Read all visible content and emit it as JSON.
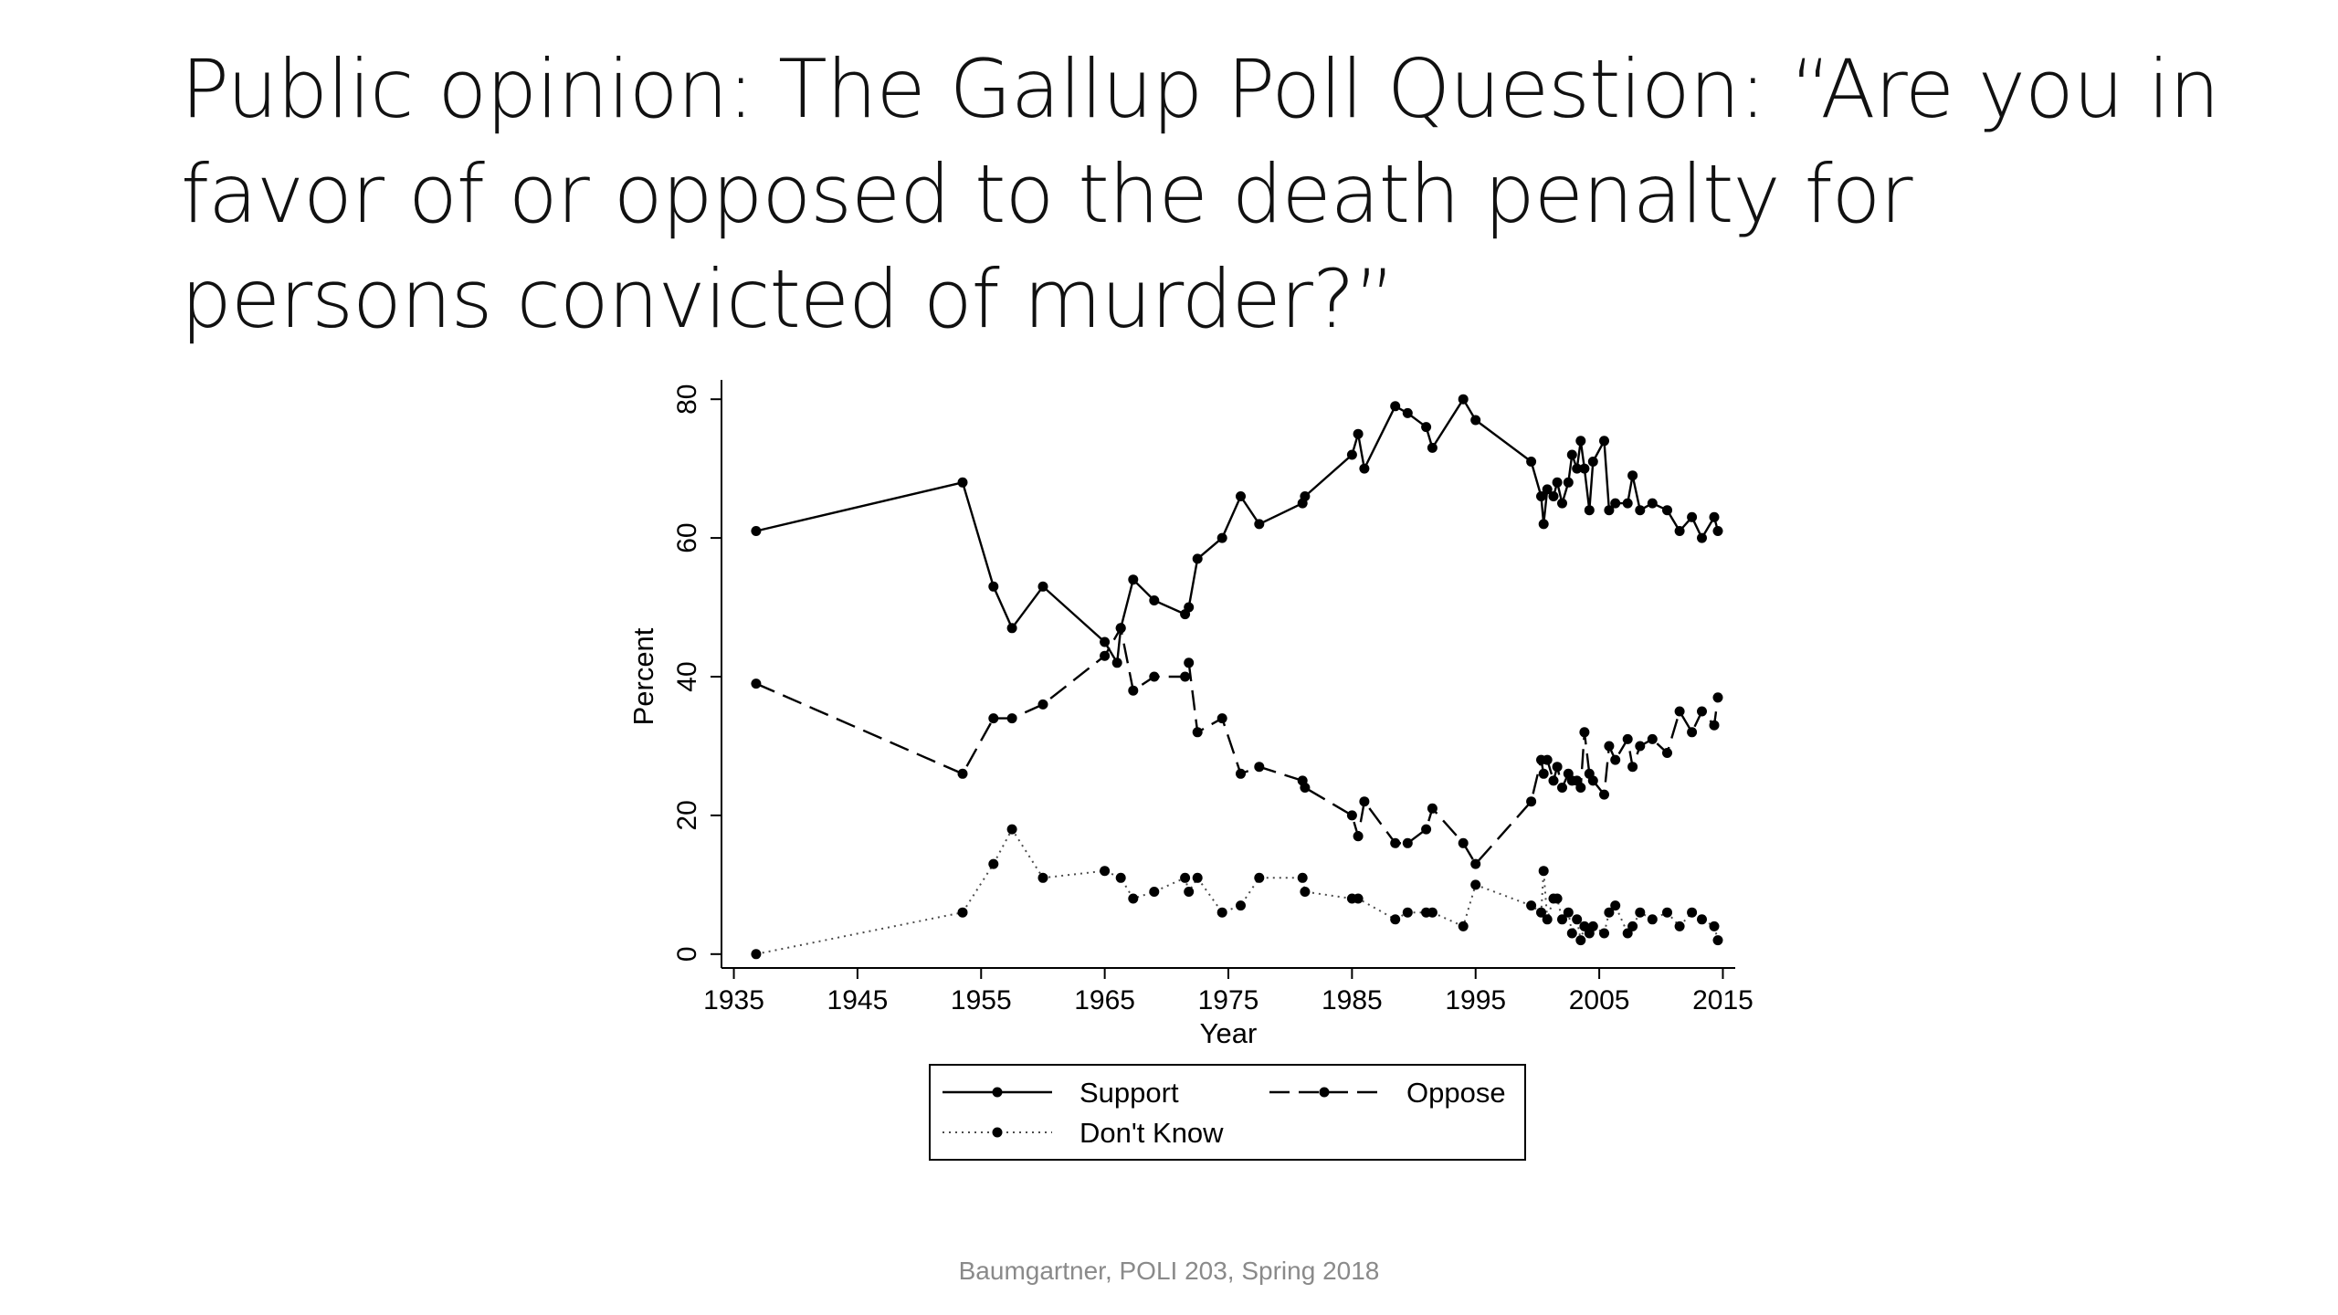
{
  "slide": {
    "title": "Public opinion: The Gallup Poll Question: “Are you in favor of or opposed to the death penalty for persons convicted of murder?”",
    "footer": "Baumgartner, POLI 203, Spring 2018"
  },
  "chart_data": {
    "type": "line",
    "xlabel": "Year",
    "ylabel": "Percent",
    "xlim": [
      1934,
      2016
    ],
    "ylim": [
      -2,
      82
    ],
    "xticks": [
      1935,
      1945,
      1955,
      1965,
      1975,
      1985,
      1995,
      2005,
      2015
    ],
    "yticks": [
      0,
      20,
      40,
      60,
      80
    ],
    "grid": false,
    "legend": {
      "position": "bottom",
      "columns": 2
    },
    "series": [
      {
        "name": "Support",
        "style": "solid",
        "points": [
          [
            1936.8,
            61
          ],
          [
            1953.5,
            68
          ],
          [
            1956,
            53
          ],
          [
            1957.5,
            47
          ],
          [
            1960,
            53
          ],
          [
            1965,
            45
          ],
          [
            1966,
            42
          ],
          [
            1966.3,
            47
          ],
          [
            1967.3,
            54
          ],
          [
            1969,
            51
          ],
          [
            1971.5,
            49
          ],
          [
            1971.8,
            50
          ],
          [
            1972.5,
            57
          ],
          [
            1974.5,
            60
          ],
          [
            1976,
            66
          ],
          [
            1977.5,
            62
          ],
          [
            1981,
            65
          ],
          [
            1981.2,
            66
          ],
          [
            1985,
            72
          ],
          [
            1985.5,
            75
          ],
          [
            1986,
            70
          ],
          [
            1988.5,
            79
          ],
          [
            1989.5,
            78
          ],
          [
            1991,
            76
          ],
          [
            1991.5,
            73
          ],
          [
            1994,
            80
          ],
          [
            1995,
            77
          ],
          [
            1999.5,
            71
          ],
          [
            2000.3,
            66
          ],
          [
            2000.5,
            62
          ],
          [
            2000.8,
            67
          ],
          [
            2001.3,
            66
          ],
          [
            2001.6,
            68
          ],
          [
            2002,
            65
          ],
          [
            2002.5,
            68
          ],
          [
            2002.8,
            72
          ],
          [
            2003.2,
            70
          ],
          [
            2003.5,
            74
          ],
          [
            2003.8,
            70
          ],
          [
            2004.2,
            64
          ],
          [
            2004.5,
            71
          ],
          [
            2005.4,
            74
          ],
          [
            2005.8,
            64
          ],
          [
            2006.3,
            65
          ],
          [
            2007.3,
            65
          ],
          [
            2007.7,
            69
          ],
          [
            2008.3,
            64
          ],
          [
            2009.3,
            65
          ],
          [
            2010.5,
            64
          ],
          [
            2011.5,
            61
          ],
          [
            2012.5,
            63
          ],
          [
            2013.3,
            60
          ],
          [
            2014.3,
            63
          ],
          [
            2014.6,
            61
          ]
        ]
      },
      {
        "name": "Oppose",
        "style": "dashed",
        "points": [
          [
            1936.8,
            39
          ],
          [
            1953.5,
            26
          ],
          [
            1956,
            34
          ],
          [
            1957.5,
            34
          ],
          [
            1960,
            36
          ],
          [
            1965,
            43
          ],
          [
            1966.3,
            47
          ],
          [
            1967.3,
            38
          ],
          [
            1969,
            40
          ],
          [
            1971.5,
            40
          ],
          [
            1971.8,
            42
          ],
          [
            1972.5,
            32
          ],
          [
            1974.5,
            34
          ],
          [
            1976,
            26
          ],
          [
            1977.5,
            27
          ],
          [
            1981,
            25
          ],
          [
            1981.2,
            24
          ],
          [
            1985,
            20
          ],
          [
            1985.5,
            17
          ],
          [
            1986,
            22
          ],
          [
            1988.5,
            16
          ],
          [
            1989.5,
            16
          ],
          [
            1991,
            18
          ],
          [
            1991.5,
            21
          ],
          [
            1994,
            16
          ],
          [
            1995,
            13
          ],
          [
            1999.5,
            22
          ],
          [
            2000.3,
            28
          ],
          [
            2000.5,
            26
          ],
          [
            2000.8,
            28
          ],
          [
            2001.3,
            25
          ],
          [
            2001.6,
            27
          ],
          [
            2002,
            24
          ],
          [
            2002.5,
            26
          ],
          [
            2002.8,
            25
          ],
          [
            2003.2,
            25
          ],
          [
            2003.5,
            24
          ],
          [
            2003.8,
            32
          ],
          [
            2004.2,
            26
          ],
          [
            2004.5,
            25
          ],
          [
            2005.4,
            23
          ],
          [
            2005.8,
            30
          ],
          [
            2006.3,
            28
          ],
          [
            2007.3,
            31
          ],
          [
            2007.7,
            27
          ],
          [
            2008.3,
            30
          ],
          [
            2009.3,
            31
          ],
          [
            2010.5,
            29
          ],
          [
            2011.5,
            35
          ],
          [
            2012.5,
            32
          ],
          [
            2013.3,
            35
          ],
          [
            2014.3,
            33
          ],
          [
            2014.6,
            37
          ]
        ]
      },
      {
        "name": "Don't Know",
        "style": "dotted",
        "points": [
          [
            1936.8,
            0
          ],
          [
            1953.5,
            6
          ],
          [
            1956,
            13
          ],
          [
            1957.5,
            18
          ],
          [
            1960,
            11
          ],
          [
            1965,
            12
          ],
          [
            1966.3,
            11
          ],
          [
            1967.3,
            8
          ],
          [
            1969,
            9
          ],
          [
            1971.5,
            11
          ],
          [
            1971.8,
            9
          ],
          [
            1972.5,
            11
          ],
          [
            1974.5,
            6
          ],
          [
            1976,
            7
          ],
          [
            1977.5,
            11
          ],
          [
            1981,
            11
          ],
          [
            1981.2,
            9
          ],
          [
            1985,
            8
          ],
          [
            1985.5,
            8
          ],
          [
            1988.5,
            5
          ],
          [
            1989.5,
            6
          ],
          [
            1991,
            6
          ],
          [
            1991.5,
            6
          ],
          [
            1994,
            4
          ],
          [
            1995,
            10
          ],
          [
            1999.5,
            7
          ],
          [
            2000.3,
            6
          ],
          [
            2000.5,
            12
          ],
          [
            2000.8,
            5
          ],
          [
            2001.3,
            8
          ],
          [
            2001.6,
            8
          ],
          [
            2002,
            5
          ],
          [
            2002.5,
            6
          ],
          [
            2002.8,
            3
          ],
          [
            2003.2,
            5
          ],
          [
            2003.5,
            2
          ],
          [
            2003.8,
            4
          ],
          [
            2004.2,
            3
          ],
          [
            2004.5,
            4
          ],
          [
            2005.4,
            3
          ],
          [
            2005.8,
            6
          ],
          [
            2006.3,
            7
          ],
          [
            2007.3,
            3
          ],
          [
            2007.7,
            4
          ],
          [
            2008.3,
            6
          ],
          [
            2009.3,
            5
          ],
          [
            2010.5,
            6
          ],
          [
            2011.5,
            4
          ],
          [
            2012.5,
            6
          ],
          [
            2013.3,
            5
          ],
          [
            2014.3,
            4
          ],
          [
            2014.6,
            2
          ]
        ]
      }
    ]
  }
}
